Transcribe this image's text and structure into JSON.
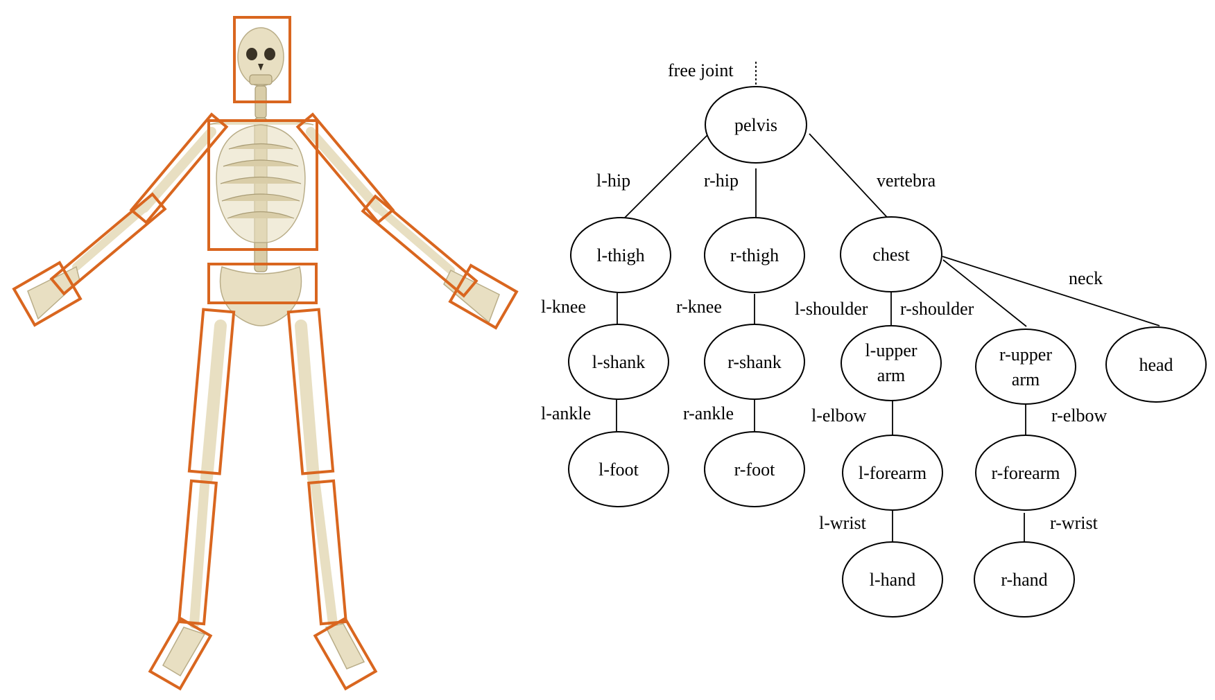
{
  "diagram": {
    "root_connector_label": "free joint",
    "nodes": {
      "pelvis": "pelvis",
      "l_thigh": "l-thigh",
      "r_thigh": "r-thigh",
      "chest": "chest",
      "l_shank": "l-shank",
      "r_shank": "r-shank",
      "l_foot": "l-foot",
      "r_foot": "r-foot",
      "l_upper_arm_1": "l-upper",
      "l_upper_arm_2": "arm",
      "r_upper_arm_1": "r-upper",
      "r_upper_arm_2": "arm",
      "head": "head",
      "l_forearm": "l-forearm",
      "r_forearm": "r-forearm",
      "l_hand": "l-hand",
      "r_hand": "r-hand"
    },
    "joints": {
      "l_hip": "l-hip",
      "r_hip": "r-hip",
      "vertebra": "vertebra",
      "l_knee": "l-knee",
      "r_knee": "r-knee",
      "l_ankle": "l-ankle",
      "r_ankle": "r-ankle",
      "l_shoulder": "l-shoulder",
      "r_shoulder": "r-shoulder",
      "neck": "neck",
      "l_elbow": "l-elbow",
      "r_elbow": "r-elbow",
      "l_wrist": "l-wrist",
      "r_wrist": "r-wrist"
    }
  },
  "colors": {
    "segment_box": "#d9661f",
    "bone": "#e8dfc2"
  }
}
